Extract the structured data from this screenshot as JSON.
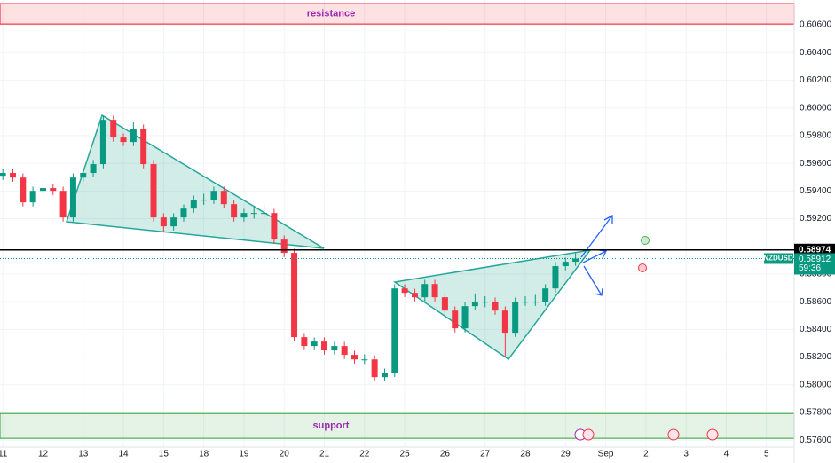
{
  "chart_data": {
    "type": "candlestick",
    "up_color": "#089981",
    "down_color": "#f23645",
    "grid": true,
    "xlim": [
      -0.07,
      19.69
    ],
    "ylim": [
      0.5755,
      0.6078
    ],
    "xticks": [
      {
        "value": 0,
        "label": "11"
      },
      {
        "value": 1,
        "label": "12"
      },
      {
        "value": 2,
        "label": "13"
      },
      {
        "value": 3,
        "label": "14"
      },
      {
        "value": 4,
        "label": "15"
      },
      {
        "value": 5,
        "label": "18"
      },
      {
        "value": 6,
        "label": "19"
      },
      {
        "value": 7,
        "label": "20"
      },
      {
        "value": 8,
        "label": "21"
      },
      {
        "value": 9,
        "label": "22"
      },
      {
        "value": 10,
        "label": "25"
      },
      {
        "value": 11,
        "label": "26"
      },
      {
        "value": 12,
        "label": "27"
      },
      {
        "value": 13,
        "label": "28"
      },
      {
        "value": 14,
        "label": "29"
      },
      {
        "value": 15,
        "label": "Sep"
      },
      {
        "value": 16,
        "label": "2"
      },
      {
        "value": 17,
        "label": "3"
      },
      {
        "value": 18,
        "label": "4"
      },
      {
        "value": 19,
        "label": "5"
      }
    ],
    "yticks": [
      {
        "value": 0.576,
        "label": "0.57600"
      },
      {
        "value": 0.578,
        "label": "0.57800"
      },
      {
        "value": 0.58,
        "label": "0.58000"
      },
      {
        "value": 0.582,
        "label": "0.58200"
      },
      {
        "value": 0.584,
        "label": "0.58400"
      },
      {
        "value": 0.586,
        "label": "0.58600"
      },
      {
        "value": 0.588,
        "label": "0.58800"
      },
      {
        "value": 0.592,
        "label": "0.59200"
      },
      {
        "value": 0.594,
        "label": "0.59400"
      },
      {
        "value": 0.596,
        "label": "0.59600"
      },
      {
        "value": 0.598,
        "label": "0.59800"
      },
      {
        "value": 0.6,
        "label": "0.60000"
      },
      {
        "value": 0.602,
        "label": "0.60200"
      },
      {
        "value": 0.604,
        "label": "0.60400"
      },
      {
        "value": 0.606,
        "label": "0.60600"
      }
    ],
    "x": [
      0,
      0.25,
      0.5,
      0.75,
      1,
      1.25,
      1.5,
      1.75,
      2,
      2.25,
      2.5,
      2.75,
      3,
      3.25,
      3.5,
      3.75,
      4,
      4.25,
      4.5,
      4.75,
      5,
      5.25,
      5.5,
      5.75,
      6,
      6.25,
      6.5,
      6.75,
      7,
      7.25,
      7.5,
      7.75,
      8,
      8.25,
      8.5,
      8.75,
      9,
      9.25,
      9.5,
      9.75,
      10,
      10.25,
      10.5,
      10.75,
      11,
      11.25,
      11.5,
      11.75,
      12,
      12.25,
      12.5,
      12.75,
      13,
      13.25,
      13.5,
      13.75,
      14,
      14.25
    ],
    "open": [
      0.5951,
      0.5953,
      0.59497,
      0.59318,
      0.59401,
      0.59421,
      0.59401,
      0.59209,
      0.59497,
      0.5953,
      0.59594,
      0.59914,
      0.59786,
      0.59754,
      0.5985,
      0.59594,
      0.59209,
      0.59145,
      0.59209,
      0.59273,
      0.59337,
      0.59337,
      0.59401,
      0.59305,
      0.59209,
      0.59241,
      0.59241,
      0.59241,
      0.59049,
      0.58953,
      0.58344,
      0.5828,
      0.58312,
      0.58248,
      0.5828,
      0.58216,
      0.58183,
      0.58183,
      0.58055,
      0.58087,
      0.58696,
      0.58664,
      0.58632,
      0.58728,
      0.58632,
      0.58536,
      0.58408,
      0.58568,
      0.586,
      0.586,
      0.58536,
      0.58376,
      0.586,
      0.586,
      0.586,
      0.58696,
      0.58857,
      0.58889
    ],
    "high": [
      0.5956,
      0.5956,
      0.59527,
      0.59431,
      0.59451,
      0.59451,
      0.59431,
      0.59527,
      0.5956,
      0.59624,
      0.59944,
      0.59944,
      0.59816,
      0.599,
      0.5988,
      0.59624,
      0.59239,
      0.59239,
      0.59303,
      0.59367,
      0.5938,
      0.59431,
      0.59431,
      0.59335,
      0.59271,
      0.5929,
      0.593,
      0.59271,
      0.59079,
      0.58983,
      0.58374,
      0.58342,
      0.58342,
      0.5831,
      0.5831,
      0.58246,
      0.5822,
      0.58213,
      0.58117,
      0.58726,
      0.58726,
      0.58694,
      0.58758,
      0.58758,
      0.58662,
      0.58566,
      0.58598,
      0.5866,
      0.5864,
      0.5863,
      0.58566,
      0.5863,
      0.5864,
      0.5865,
      0.58726,
      0.58887,
      0.58919,
      0.5895
    ],
    "low": [
      0.5948,
      0.59467,
      0.59288,
      0.59288,
      0.59371,
      0.59371,
      0.59179,
      0.59179,
      0.59467,
      0.595,
      0.59564,
      0.59756,
      0.59724,
      0.59724,
      0.59564,
      0.59179,
      0.591,
      0.59115,
      0.59179,
      0.59243,
      0.593,
      0.59307,
      0.59275,
      0.59179,
      0.59179,
      0.592,
      0.59211,
      0.59019,
      0.58923,
      0.58314,
      0.5825,
      0.5825,
      0.58218,
      0.58218,
      0.58186,
      0.58153,
      0.5815,
      0.58025,
      0.58025,
      0.58057,
      0.58634,
      0.58602,
      0.58602,
      0.58602,
      0.58506,
      0.58378,
      0.58378,
      0.58538,
      0.5856,
      0.58506,
      0.582,
      0.58346,
      0.5857,
      0.5857,
      0.5857,
      0.58666,
      0.58827,
      0.58859
    ],
    "close": [
      0.5953,
      0.59497,
      0.59318,
      0.59401,
      0.59421,
      0.59401,
      0.59209,
      0.59497,
      0.5953,
      0.59594,
      0.59914,
      0.59786,
      0.59754,
      0.5985,
      0.59594,
      0.59209,
      0.59145,
      0.59209,
      0.59273,
      0.59337,
      0.59337,
      0.59401,
      0.59305,
      0.59209,
      0.59241,
      0.59241,
      0.59241,
      0.59049,
      0.58953,
      0.58344,
      0.5828,
      0.58312,
      0.58248,
      0.5828,
      0.58216,
      0.58183,
      0.58183,
      0.58055,
      0.58087,
      0.58696,
      0.58664,
      0.58632,
      0.58728,
      0.58632,
      0.58536,
      0.58408,
      0.58568,
      0.586,
      0.586,
      0.58536,
      0.58376,
      0.586,
      0.586,
      0.586,
      0.58696,
      0.58857,
      0.58889,
      0.58912
    ],
    "zones": [
      {
        "name": "resistance",
        "from": 0.60606,
        "to": 0.60754,
        "color": "#f23645"
      },
      {
        "name": "support",
        "from": 0.57613,
        "to": 0.57792,
        "color": "#4caf50"
      }
    ],
    "price_line": {
      "value": 0.58974,
      "label": "0.58974"
    },
    "last_price": {
      "symbol": "NZDUSD",
      "value": 0.58912,
      "label": "0.58912",
      "countdown": "59:36"
    }
  }
}
